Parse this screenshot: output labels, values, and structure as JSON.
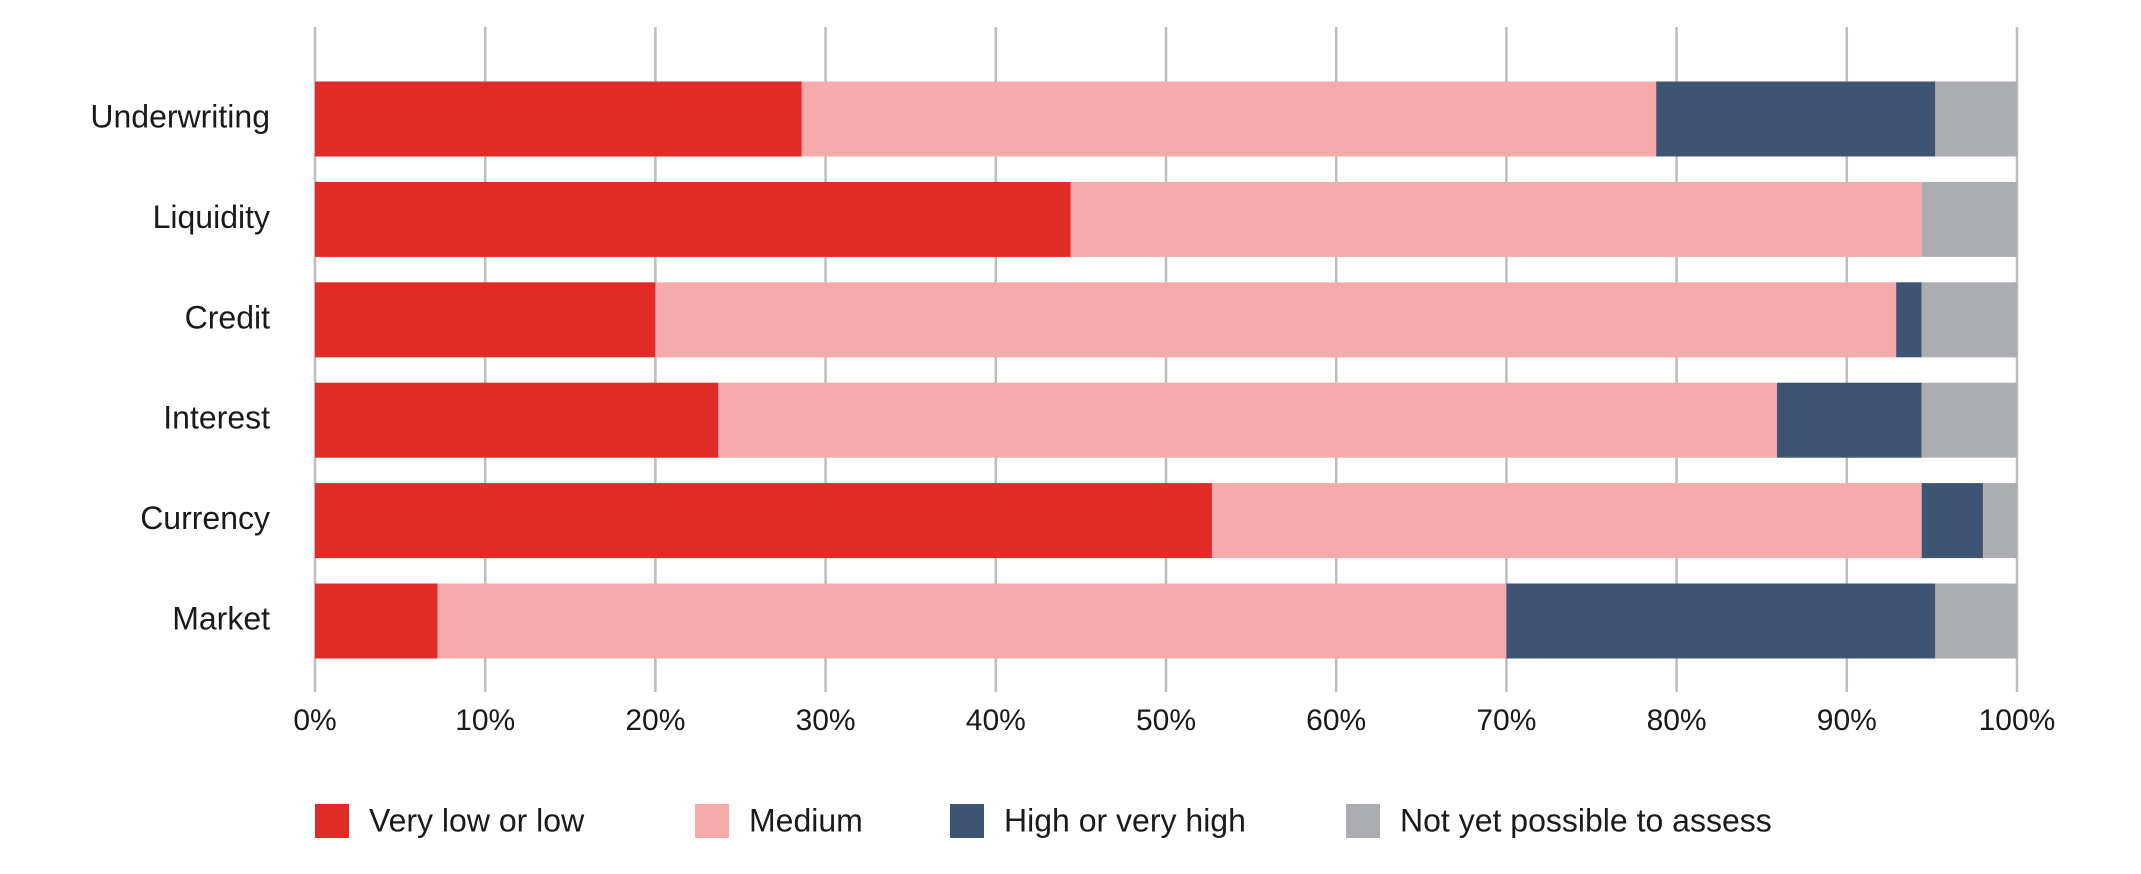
{
  "chart_data": {
    "type": "stacked-bar-horizontal",
    "categories": [
      "Underwriting",
      "Liquidity",
      "Credit",
      "Interest",
      "Currency",
      "Market"
    ],
    "series": [
      {
        "name": "Very low or low",
        "color": "#e02b27",
        "values": [
          28.6,
          44.4,
          20.0,
          23.7,
          52.7,
          7.2
        ]
      },
      {
        "name": "Medium",
        "color": "#f6aaab",
        "values": [
          50.2,
          50.0,
          72.9,
          62.2,
          41.7,
          62.8
        ]
      },
      {
        "name": "High or very high",
        "color": "#3e5473",
        "values": [
          16.4,
          0,
          1.5,
          8.5,
          3.6,
          25.2
        ]
      },
      {
        "name": "Not yet possible to assess",
        "color": "#acadb1",
        "values": [
          4.8,
          5.6,
          5.6,
          5.6,
          2.0,
          4.8
        ]
      }
    ],
    "xlim": [
      0,
      100
    ],
    "xticks": [
      {
        "value": 0,
        "label": "0%"
      },
      {
        "value": 10,
        "label": "10%"
      },
      {
        "value": 20,
        "label": "20%"
      },
      {
        "value": 30,
        "label": "30%"
      },
      {
        "value": 40,
        "label": "40%"
      },
      {
        "value": 50,
        "label": "50%"
      },
      {
        "value": 60,
        "label": "60%"
      },
      {
        "value": 70,
        "label": "70%"
      },
      {
        "value": 80,
        "label": "80%"
      },
      {
        "value": 90,
        "label": "90%"
      },
      {
        "value": 100,
        "label": "100%"
      }
    ],
    "grid": true
  }
}
